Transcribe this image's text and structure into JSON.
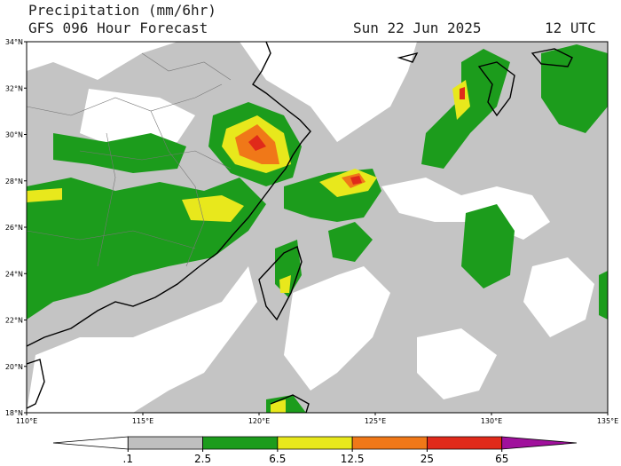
{
  "header": {
    "title": "Precipitation (mm/6hr)",
    "subtitle": "GFS 096 Hour Forecast",
    "date": "Sun 22 Jun 2025",
    "time": "12 UTC"
  },
  "map": {
    "lat_range": [
      18,
      34
    ],
    "lon_range": [
      110,
      135
    ],
    "lat_ticks": [
      {
        "value": 18,
        "label": "18°N"
      },
      {
        "value": 20,
        "label": "20°N"
      },
      {
        "value": 22,
        "label": "22°N"
      },
      {
        "value": 24,
        "label": "24°N"
      },
      {
        "value": 26,
        "label": "26°N"
      },
      {
        "value": 28,
        "label": "28°N"
      },
      {
        "value": 30,
        "label": "30°N"
      },
      {
        "value": 32,
        "label": "32°N"
      },
      {
        "value": 34,
        "label": "34°N"
      }
    ],
    "lon_ticks": [
      {
        "value": 110,
        "label": "110°E"
      },
      {
        "value": 115,
        "label": "115°E"
      },
      {
        "value": 120,
        "label": "120°E"
      },
      {
        "value": 125,
        "label": "125°E"
      },
      {
        "value": 130,
        "label": "130°E"
      },
      {
        "value": 135,
        "label": "135°E"
      }
    ]
  },
  "colorbar": {
    "colors": [
      "#ffffff",
      "#bfbfbf",
      "#1c9c1c",
      "#e8e81c",
      "#f07818",
      "#e02a1a",
      "#a0109c"
    ],
    "levels": [
      {
        "value": 0.1,
        "label": ".1"
      },
      2.5,
      6.5,
      12.5,
      25,
      65
    ]
  }
}
